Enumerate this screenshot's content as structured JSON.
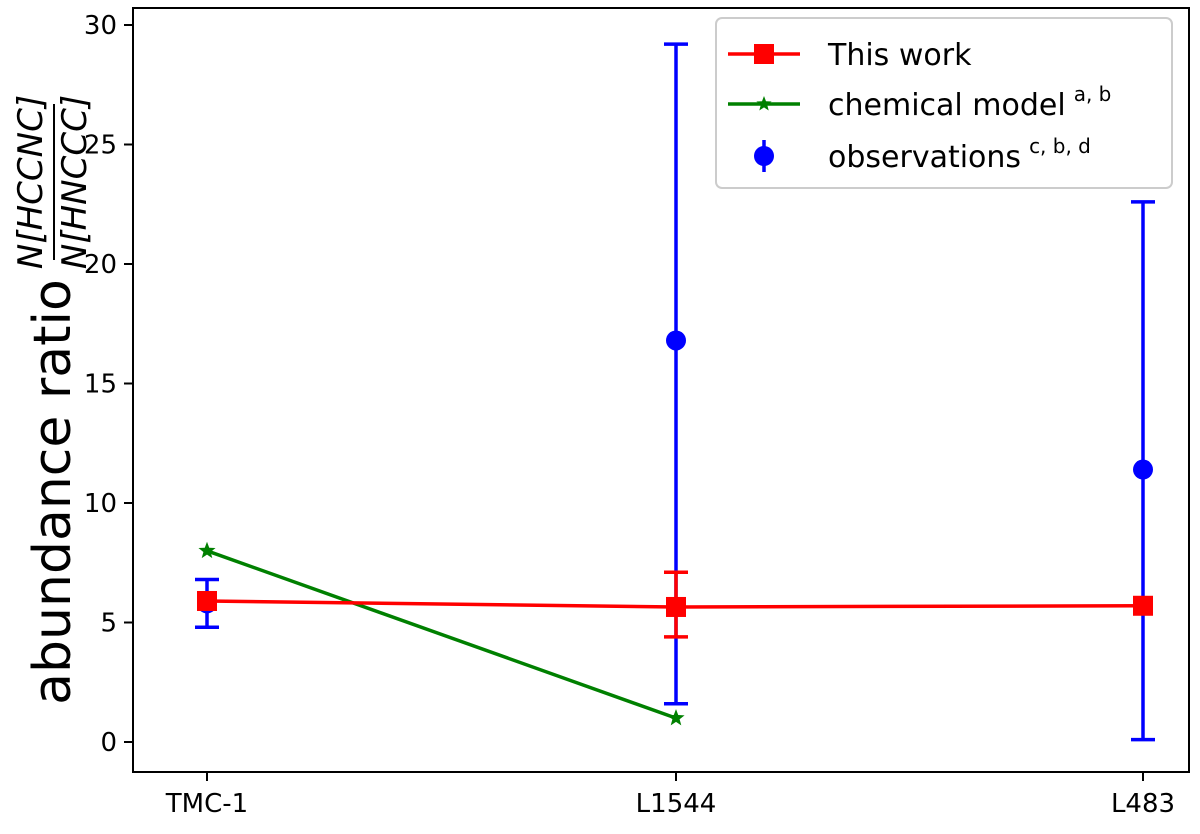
{
  "chart_data": {
    "type": "line",
    "categories": [
      "TMC-1",
      "L1544",
      "L483"
    ],
    "ylabel": {
      "text": "abundance ratio",
      "numerator": "N[HCCNC]",
      "denominator": "N[HNCCC]"
    },
    "ylim": [
      -1.3,
      30.8
    ],
    "yticks": [
      0,
      5,
      10,
      15,
      20,
      25,
      30
    ],
    "grid": false,
    "legend_position": "top-right",
    "series": [
      {
        "name": "This work",
        "color": "#ff0000",
        "marker": "square",
        "line": true,
        "values": [
          5.9,
          5.65,
          5.7
        ],
        "errors": [
          null,
          [
            4.4,
            7.1
          ],
          null
        ]
      },
      {
        "name": "chemical model",
        "superscript": "a, b",
        "color": "#008000",
        "marker": "star",
        "line": true,
        "values": [
          8.0,
          1.0,
          null
        ]
      },
      {
        "name": "observations",
        "superscript": "c, b, d",
        "color": "#0000ff",
        "marker": "circle",
        "line": false,
        "values": [
          5.8,
          16.8,
          11.4
        ],
        "errors": [
          [
            4.8,
            6.8
          ],
          [
            1.6,
            29.2
          ],
          [
            0.1,
            22.6
          ]
        ]
      }
    ]
  }
}
